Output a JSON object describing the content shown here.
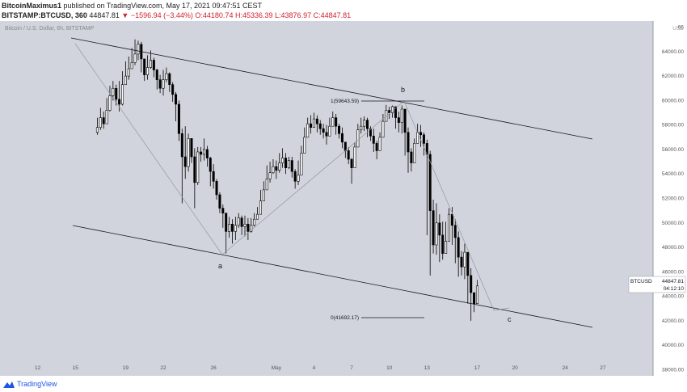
{
  "header": {
    "author": "BitcoinMaximus1",
    "published_text": "published on TradingView.com, May 17, 2021 09:47:51 CEST",
    "symbol_line": "BITSTAMP:BTCUSD, 360",
    "last": "44847.81",
    "change": "▼ −1596.94 (−3.44%)",
    "open": "O:44180.74",
    "high": "H:45336.39",
    "low": "L:43876.97",
    "close": "C:44847.81"
  },
  "footer": {
    "brand": "TradingView"
  },
  "colors": {
    "background": "#d1d4dc",
    "candle": "#000000",
    "up_fill": "#ffffff",
    "axis_text": "#555555"
  },
  "chart_data": {
    "type": "candlestick",
    "title": "Bitcoin / U.S. Dollar, 6h, BITSTAMP",
    "price_label": "BTCUSD",
    "last_price": "44847.81",
    "countdown": "04:12:10",
    "currency": "USD",
    "y_axis_ticks": [
      "38000.00",
      "40000.00",
      "42000.00",
      "44000.00",
      "46000.00",
      "48000.00",
      "50000.00",
      "52000.00",
      "54000.00",
      "56000.00",
      "58000.00",
      "60000.00",
      "62000.00",
      "64000.00",
      "66"
    ],
    "ylim": [
      37500,
      66500
    ],
    "x_axis_ticks": [
      "12",
      "15",
      "19",
      "22",
      "26",
      "May",
      "4",
      "7",
      "10",
      "13",
      "17",
      "20",
      "24",
      "27"
    ],
    "x_tick_dates": [
      "2021-04-12",
      "2021-04-15",
      "2021-04-19",
      "2021-04-22",
      "2021-04-26",
      "2021-05-01",
      "2021-05-04",
      "2021-05-07",
      "2021-05-10",
      "2021-05-13",
      "2021-05-17",
      "2021-05-20",
      "2021-05-24",
      "2021-05-27"
    ],
    "xlim": [
      "2021-04-09",
      "2021-05-31"
    ],
    "closes": [
      57800,
      58600,
      58100,
      59200,
      60400,
      61000,
      60100,
      59700,
      61300,
      62000,
      62600,
      63100,
      63800,
      64600,
      63400,
      62100,
      62700,
      63300,
      62500,
      61700,
      61000,
      61700,
      62200,
      61300,
      60500,
      59700,
      57300,
      55400,
      54600,
      56900,
      55400,
      53300,
      55800,
      55600,
      56000,
      55300,
      54200,
      53400,
      52300,
      51200,
      50800,
      49300,
      49900,
      49300,
      49800,
      50400,
      49700,
      49900,
      49300,
      49800,
      50300,
      50700,
      51800,
      52700,
      53600,
      54100,
      54600,
      54300,
      54900,
      55300,
      54500,
      55100,
      54200,
      53400,
      53900,
      55700,
      57000,
      58100,
      57800,
      58500,
      58100,
      57700,
      57400,
      57100,
      57900,
      58600,
      57900,
      57300,
      56600,
      55900,
      55200,
      54500,
      56200,
      57600,
      57900,
      58400,
      57700,
      57100,
      56500,
      55900,
      57000,
      58300,
      59200,
      59000,
      59500,
      58600,
      58200,
      59300,
      57400,
      55800,
      54900,
      56500,
      57400,
      57200,
      56500,
      55600,
      51000,
      48200,
      50000,
      49000,
      47500,
      48500,
      50700,
      49800,
      48800,
      47200,
      46400,
      47600,
      45700,
      44300,
      43400,
      44848
    ],
    "highs": [
      58600,
      59400,
      59100,
      60200,
      61200,
      61600,
      61300,
      61600,
      62400,
      63200,
      63600,
      64300,
      65000,
      64900,
      64800,
      63300,
      63700,
      64100,
      63500,
      62600,
      62100,
      62500,
      62700,
      62300,
      61500,
      60700,
      60000,
      57700,
      57900,
      57300,
      56700,
      56100,
      56200,
      56200,
      56900,
      56300,
      55400,
      54800,
      53600,
      52500,
      51500,
      50600,
      50500,
      50300,
      50500,
      50800,
      50600,
      50600,
      50400,
      50400,
      50800,
      51300,
      52700,
      53400,
      54700,
      55000,
      55200,
      55100,
      55700,
      56100,
      55700,
      55400,
      55400,
      54400,
      55100,
      56300,
      57800,
      58600,
      58800,
      59000,
      58800,
      58400,
      58100,
      58000,
      58600,
      59100,
      58900,
      58100,
      57800,
      56600,
      56200,
      55300,
      56600,
      58100,
      58600,
      58700,
      58600,
      57900,
      57700,
      56700,
      57400,
      58900,
      59643,
      59500,
      59600,
      59400,
      59100,
      59600,
      59100,
      57800,
      56100,
      56900,
      58100,
      58000,
      57400,
      56800,
      55900,
      51900,
      51600,
      50700,
      50100,
      50100,
      51200,
      51300,
      50300,
      49300,
      47700,
      48300,
      47300,
      46300,
      44300,
      45336
    ],
    "lows": [
      57200,
      57600,
      57700,
      58100,
      59100,
      60000,
      59600,
      59100,
      59600,
      61400,
      61700,
      62600,
      62900,
      63300,
      62300,
      61600,
      61700,
      62600,
      61900,
      60900,
      60600,
      60400,
      61500,
      60700,
      59900,
      58300,
      56700,
      51600,
      53600,
      54200,
      54900,
      51200,
      53100,
      55000,
      55100,
      54600,
      53000,
      52800,
      51900,
      50800,
      49600,
      47500,
      48800,
      48300,
      48600,
      49600,
      49000,
      48900,
      48600,
      49200,
      49700,
      50300,
      51400,
      52200,
      53100,
      53300,
      54000,
      53600,
      54100,
      54500,
      54000,
      54400,
      53700,
      52800,
      53100,
      55000,
      56400,
      57400,
      57300,
      57800,
      57400,
      57200,
      56900,
      56400,
      57300,
      57900,
      57200,
      56900,
      56100,
      55300,
      54800,
      53200,
      55500,
      57200,
      57300,
      57500,
      57000,
      56700,
      55800,
      55200,
      56600,
      57900,
      58700,
      58500,
      58600,
      57700,
      57400,
      57300,
      55500,
      54100,
      54200,
      55800,
      56500,
      56200,
      55500,
      49000,
      45700,
      47500,
      47400,
      46800,
      47000,
      47700,
      48900,
      48200,
      46700,
      45600,
      45700,
      45400,
      43400,
      42000,
      42700,
      43876
    ]
  },
  "drawings": {
    "fib_top_label": "1(59643.59)",
    "fib_bottom_label": "0(41692.17)",
    "wave_a": "a",
    "wave_b": "b",
    "wave_c": "c"
  }
}
